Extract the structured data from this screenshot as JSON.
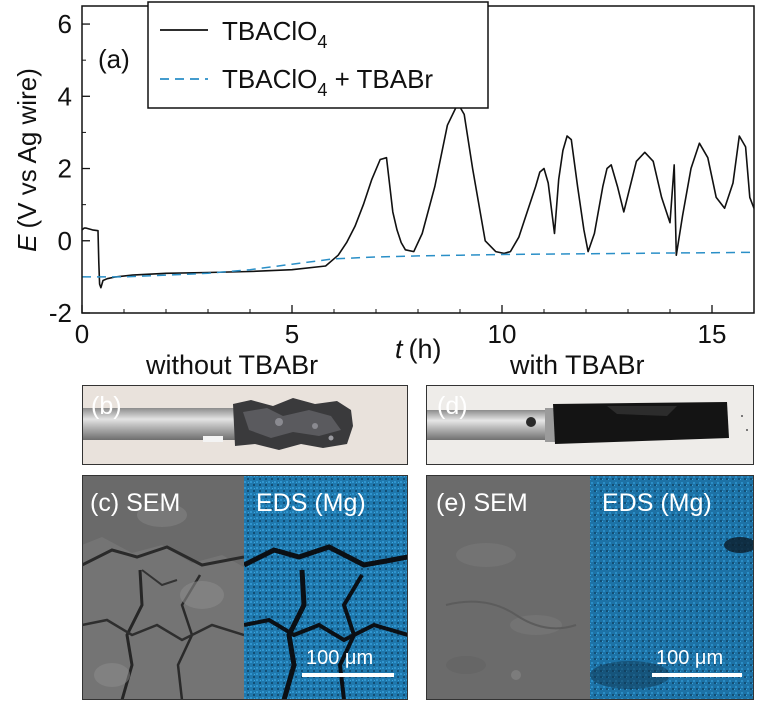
{
  "panel_a": {
    "label": "(a)",
    "chart_data": {
      "type": "line",
      "title": "",
      "xlabel_var": "t",
      "xlabel_unit": "(h)",
      "ylabel_var": "E",
      "ylabel_unit": "(V vs Ag wire)",
      "xlim": [
        0,
        16
      ],
      "ylim": [
        -2,
        6.5
      ],
      "xticks": [
        0,
        5,
        10,
        15
      ],
      "yticks": [
        -2,
        0,
        2,
        4,
        6
      ],
      "series": [
        {
          "name": "TBAClO4",
          "legend_main": "TBAClO",
          "legend_sub": "4",
          "legend_suffix": "",
          "style": "solid",
          "color": "#111111",
          "x": [
            0,
            0.05,
            0.1,
            0.25,
            0.38,
            0.4,
            0.42,
            0.45,
            0.5,
            0.6,
            0.8,
            1.2,
            2.0,
            3.0,
            4.0,
            5.0,
            5.8,
            6.1,
            6.3,
            6.5,
            6.7,
            6.9,
            7.1,
            7.25,
            7.4,
            7.5,
            7.6,
            7.7,
            7.9,
            8.1,
            8.4,
            8.7,
            8.95,
            9.1,
            9.3,
            9.6,
            9.85,
            10.05,
            10.2,
            10.4,
            10.6,
            10.8,
            10.9,
            11.0,
            11.1,
            11.25,
            11.35,
            11.45,
            11.55,
            11.65,
            11.8,
            11.95,
            12.05,
            12.2,
            12.4,
            12.5,
            12.6,
            12.75,
            12.9,
            13.05,
            13.2,
            13.4,
            13.6,
            13.8,
            14.0,
            14.1,
            14.15,
            14.3,
            14.5,
            14.7,
            14.9,
            15.1,
            15.3,
            15.5,
            15.65,
            15.8,
            15.9,
            16.0
          ],
          "y": [
            0.3,
            0.35,
            0.35,
            0.3,
            0.28,
            -0.6,
            -1.2,
            -1.3,
            -1.1,
            -1.05,
            -1.0,
            -0.95,
            -0.9,
            -0.88,
            -0.85,
            -0.8,
            -0.7,
            -0.4,
            -0.05,
            0.4,
            1.0,
            1.7,
            2.25,
            2.3,
            0.8,
            0.3,
            -0.05,
            -0.25,
            -0.3,
            0.2,
            1.5,
            3.2,
            3.8,
            3.5,
            2.0,
            0.0,
            -0.3,
            -0.35,
            -0.3,
            0.1,
            0.8,
            1.5,
            1.9,
            2.0,
            1.6,
            0.2,
            1.7,
            2.5,
            2.9,
            2.8,
            1.5,
            0.3,
            -0.3,
            0.2,
            1.5,
            2.0,
            2.1,
            1.5,
            0.8,
            1.5,
            2.2,
            2.45,
            2.2,
            1.2,
            0.5,
            2.1,
            -0.4,
            0.7,
            2.0,
            2.7,
            2.3,
            1.2,
            0.9,
            1.6,
            2.9,
            2.6,
            1.2,
            0.9
          ]
        },
        {
          "name": "TBAClO4 + TBABr",
          "legend_main": "TBAClO",
          "legend_sub": "4",
          "legend_suffix": " + TBABr",
          "style": "dashed",
          "color": "#2a8fc7",
          "x": [
            0,
            1,
            2,
            3,
            4,
            5,
            6,
            7,
            8,
            9,
            10,
            11,
            12,
            13,
            14,
            15,
            16
          ],
          "y": [
            -1.0,
            -1.0,
            -0.95,
            -0.9,
            -0.8,
            -0.65,
            -0.5,
            -0.45,
            -0.42,
            -0.4,
            -0.38,
            -0.37,
            -0.36,
            -0.35,
            -0.34,
            -0.33,
            -0.32
          ]
        }
      ]
    }
  },
  "caption_without": "without TBABr",
  "caption_with": "with TBABr",
  "panel_b": {
    "label": "(b)"
  },
  "panel_c": {
    "label": "(c) SEM",
    "eds_label": "EDS (Mg)",
    "scale": "100 μm"
  },
  "panel_d": {
    "label": "(d)"
  },
  "panel_e": {
    "label": "(e) SEM",
    "eds_label": "EDS (Mg)",
    "scale": "100 μm"
  }
}
